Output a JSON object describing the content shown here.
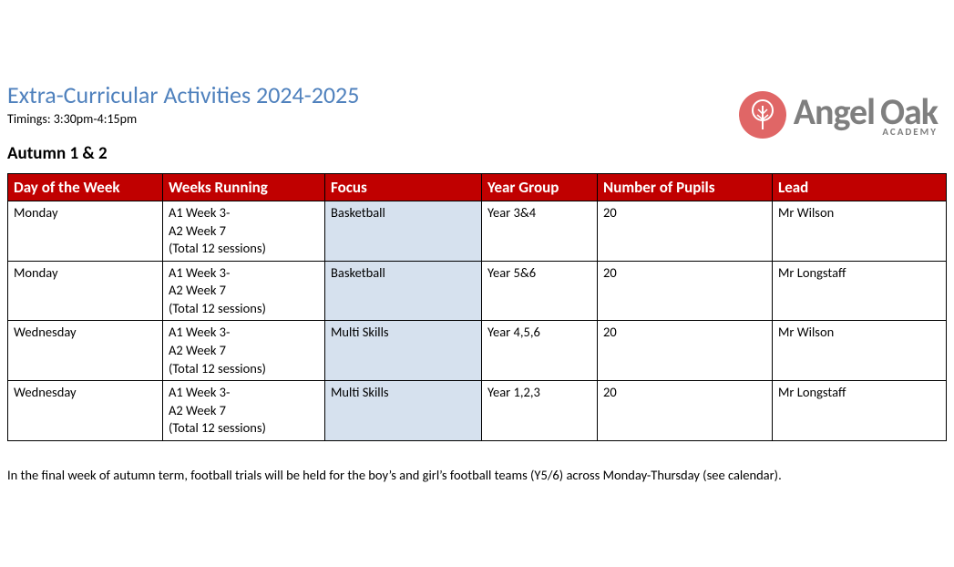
{
  "logo": {
    "brand_word1": "Angel",
    "brand_word2": "Oak",
    "subtext": "ACADEMY",
    "circle_color": "#e06666",
    "brand_text_color": "#7f7f7f"
  },
  "heading": {
    "title": "Extra-Curricular Activities 2024-2025",
    "title_color": "#4f81bd",
    "timings": "Timings: 3:30pm-4:15pm",
    "term": "Autumn 1 & 2"
  },
  "table": {
    "header_bg": "#c00000",
    "header_fg": "#ffffff",
    "focus_cell_bg": "#d6e1ee",
    "border_color": "#000000",
    "columns": [
      "Day of the Week",
      "Weeks Running",
      "Focus",
      "Year Group",
      "Number of Pupils",
      "Lead"
    ],
    "rows": [
      {
        "day": "Monday",
        "weeks_l1": "A1 Week 3-",
        "weeks_l2": "A2 Week 7",
        "weeks_l3": "(Total 12 sessions)",
        "focus": "Basketball",
        "year": "Year 3&4",
        "pupils": "20",
        "lead": "Mr Wilson"
      },
      {
        "day": "Monday",
        "weeks_l1": "A1 Week 3-",
        "weeks_l2": "A2 Week 7",
        "weeks_l3": "(Total 12 sessions)",
        "focus": "Basketball",
        "year": "Year 5&6",
        "pupils": "20",
        "lead": "Mr Longstaff"
      },
      {
        "day": "Wednesday",
        "weeks_l1": "A1 Week 3-",
        "weeks_l2": "A2 Week 7",
        "weeks_l3": "(Total 12 sessions)",
        "focus": "Multi Skills",
        "year": "Year 4,5,6",
        "pupils": "20",
        "lead": "Mr Wilson"
      },
      {
        "day": "Wednesday",
        "weeks_l1": "A1 Week 3-",
        "weeks_l2": "A2 Week 7",
        "weeks_l3": "(Total 12 sessions)",
        "focus": "Multi Skills",
        "year": "Year 1,2,3",
        "pupils": "20",
        "lead": "Mr Longstaff"
      }
    ]
  },
  "footer_note": "In the final week of autumn term, football trials will be held for the boy’s and girl’s football teams (Y5/6) across Monday-Thursday (see calendar)."
}
